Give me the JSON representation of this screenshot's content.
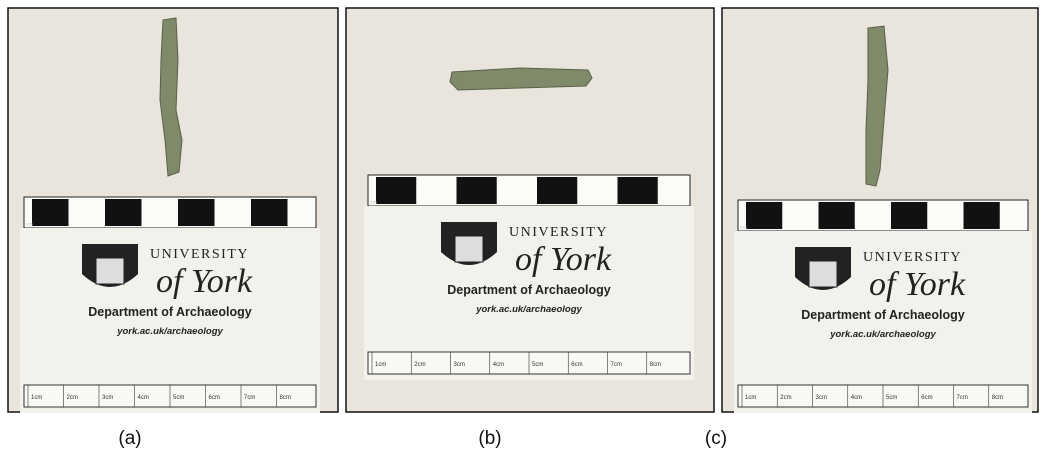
{
  "panels": [
    {
      "caption": "(a)",
      "card": {
        "university": "UNIVERSITY",
        "york": "of York",
        "department": "Department of Archaeology",
        "url": "york.ac.uk/archaeology",
        "scale_unit": "cm",
        "ruler_labels": [
          "1cm",
          "2cm",
          "3cm",
          "4cm",
          "5cm",
          "6cm",
          "7cm",
          "8cm"
        ]
      }
    },
    {
      "caption": "(b)",
      "card": {
        "university": "UNIVERSITY",
        "york": "of York",
        "department": "Department of Archaeology",
        "url": "york.ac.uk/archaeology",
        "scale_unit": "cm",
        "ruler_labels": [
          "1cm",
          "2cm",
          "3cm",
          "4cm",
          "5cm",
          "6cm",
          "7cm",
          "8cm"
        ]
      }
    },
    {
      "caption": "(c)",
      "card": {
        "university": "UNIVERSITY",
        "york": "of York",
        "department": "Department of Archaeology",
        "url": "york.ac.uk/archaeology",
        "scale_unit": "cm",
        "ruler_labels": [
          "1cm",
          "2cm",
          "3cm",
          "4cm",
          "5cm",
          "6cm",
          "7cm",
          "8cm"
        ]
      }
    }
  ]
}
